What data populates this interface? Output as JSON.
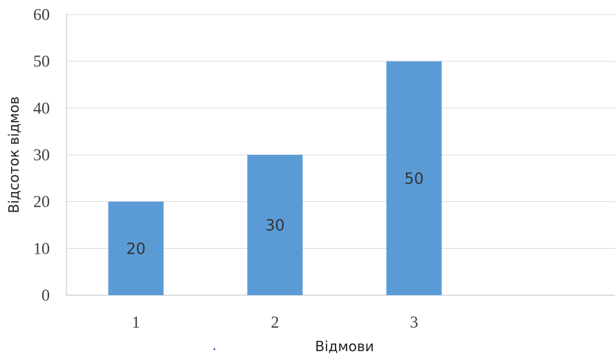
{
  "chart_data": {
    "type": "bar",
    "categories": [
      "1",
      "2",
      "3"
    ],
    "values": [
      20,
      30,
      50
    ],
    "data_labels": [
      "20",
      "30",
      "50"
    ],
    "xlabel": "Відмови",
    "ylabel": "Відсоток відмов",
    "ylim": [
      0,
      60
    ],
    "yticks": [
      0,
      10,
      20,
      30,
      40,
      50,
      60
    ],
    "ytick_labels": [
      "0",
      "10",
      "20",
      "30",
      "40",
      "50",
      "60"
    ],
    "grid": true,
    "legend": "none",
    "colors": {
      "bar": "#5b9bd5",
      "grid": "#d9d9d9",
      "axis": "#bfbfbf",
      "dot": "#1f3fbf"
    }
  }
}
